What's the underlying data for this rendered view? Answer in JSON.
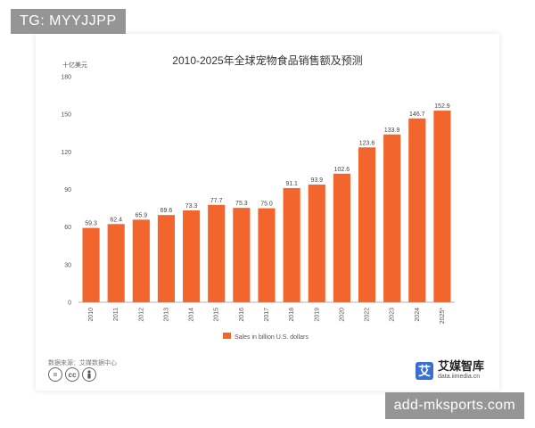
{
  "watermark_top": "TG: MYYJJPP",
  "watermark_bottom": "add-mksports.com",
  "source_label": "数据来源：艾媒数据中心",
  "brand": {
    "name": "艾媒智库",
    "url": "data.iimedia.cn",
    "logo_char": "艾"
  },
  "cc_icons": [
    "equals-icon",
    "cc-icon",
    "person-icon"
  ],
  "colors": {
    "bar": "#f2652c",
    "axis": "#999999",
    "grid": "#e8e8e8",
    "text": "#555555"
  },
  "chart_data": {
    "type": "bar",
    "title": "2010-2025年全球宠物食品销售额及预测",
    "ylabel": "十亿美元",
    "xlabel": "",
    "categories": [
      "2010",
      "2011",
      "2012",
      "2013",
      "2014",
      "2015",
      "2016",
      "2017",
      "2018",
      "2019",
      "2020",
      "2022",
      "2023",
      "2024",
      "2025*"
    ],
    "series": [
      {
        "name": "Sales in billion U.S. dollars",
        "values": [
          59.3,
          62.4,
          65.9,
          69.6,
          73.3,
          77.7,
          75.3,
          75.0,
          91.1,
          93.9,
          102.6,
          123.6,
          133.9,
          146.7,
          152.9
        ]
      }
    ],
    "value_labels": [
      "59.3",
      "62.4",
      "65.9",
      "69.6",
      "73.3",
      "77.7",
      "75.3",
      "75.0",
      "91.1",
      "93.9",
      "102.6",
      "123.6",
      "133.9",
      "146.7",
      "152.9"
    ],
    "ylim": [
      0,
      180
    ],
    "yticks": [
      0,
      30,
      60,
      90,
      120,
      150,
      180
    ],
    "grid": false,
    "legend": "bottom-center"
  }
}
